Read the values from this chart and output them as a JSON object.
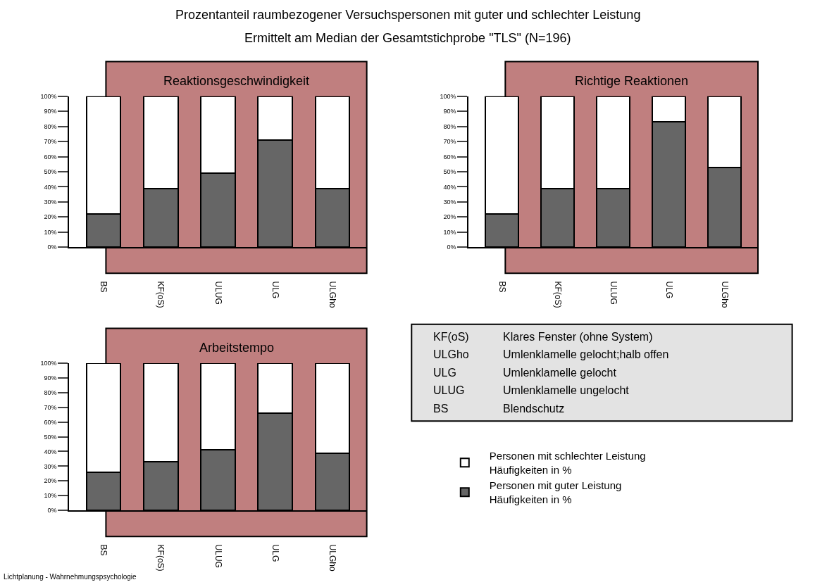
{
  "chart_data": [
    {
      "type": "bar",
      "title": "Reaktionsgeschwindigkeit",
      "categories": [
        "BS",
        "KF(oS)",
        "ULUG",
        "ULG",
        "ULGho"
      ],
      "stacked": true,
      "legend": "bottom right",
      "series": [
        {
          "name": "Personen mit guter Leistung\nHäufigkeiten in %",
          "color": "#666666",
          "values": [
            22,
            39,
            49,
            71,
            39
          ]
        },
        {
          "name": "Personen mit schlechter Leistung\nHäufigkeiten in %",
          "color": "#ffffff",
          "values": [
            78,
            61,
            51,
            29,
            61
          ]
        }
      ],
      "ylim": [
        0,
        100
      ],
      "yticks": [
        {
          "value": 0,
          "label": "0%"
        },
        {
          "value": 10,
          "label": "10%"
        },
        {
          "value": 20,
          "label": "20%"
        },
        {
          "value": 30,
          "label": "30%"
        },
        {
          "value": 40,
          "label": "40%"
        },
        {
          "value": 50,
          "label": "50%"
        },
        {
          "value": 60,
          "label": "60%"
        },
        {
          "value": 70,
          "label": "70%"
        },
        {
          "value": 80,
          "label": "80%"
        },
        {
          "value": 90,
          "label": "90%"
        },
        {
          "value": 100,
          "label": "100%"
        }
      ]
    },
    {
      "type": "bar",
      "title": "Richtige Reaktionen",
      "categories": [
        "BS",
        "KF(oS)",
        "ULUG",
        "ULG",
        "ULGho"
      ],
      "stacked": true,
      "series": [
        {
          "color": "#666666",
          "values": [
            22,
            39,
            39,
            83,
            53
          ]
        },
        {
          "color": "#ffffff",
          "values": [
            78,
            61,
            61,
            17,
            47
          ]
        }
      ],
      "ylim": [
        0,
        100
      ],
      "yticks": [
        {
          "value": 0,
          "label": "0%"
        },
        {
          "value": 10,
          "label": "10%"
        },
        {
          "value": 20,
          "label": "20%"
        },
        {
          "value": 30,
          "label": "30%"
        },
        {
          "value": 40,
          "label": "40%"
        },
        {
          "value": 50,
          "label": "50%"
        },
        {
          "value": 60,
          "label": "60%"
        },
        {
          "value": 70,
          "label": "70%"
        },
        {
          "value": 80,
          "label": "80%"
        },
        {
          "value": 90,
          "label": "90%"
        },
        {
          "value": 100,
          "label": "100%"
        }
      ]
    },
    {
      "type": "bar",
      "title": "Arbeitstempo",
      "categories": [
        "BS",
        "KF(oS)",
        "ULUG",
        "ULG",
        "ULGho"
      ],
      "stacked": true,
      "series": [
        {
          "color": "#666666",
          "values": [
            26,
            33,
            41,
            66,
            39
          ]
        },
        {
          "color": "#ffffff",
          "values": [
            74,
            67,
            59,
            34,
            61
          ]
        }
      ],
      "ylim": [
        0,
        100
      ],
      "yticks": [
        {
          "value": 0,
          "label": "0%"
        },
        {
          "value": 10,
          "label": "10%"
        },
        {
          "value": 20,
          "label": "20%"
        },
        {
          "value": 30,
          "label": "30%"
        },
        {
          "value": 40,
          "label": "40%"
        },
        {
          "value": 50,
          "label": "50%"
        },
        {
          "value": 60,
          "label": "60%"
        },
        {
          "value": 70,
          "label": "70%"
        },
        {
          "value": 80,
          "label": "80%"
        },
        {
          "value": 90,
          "label": "90%"
        },
        {
          "value": 100,
          "label": "100%"
        }
      ],
      "annotations": [
        "Lichtplanung - Wahrnehmungspsychologie"
      ]
    },
    {
      "type": "other",
      "title": "Prozentanteil raumbezogener Versuchspersonen mit guter und schlechter Leistung",
      "subtitle": "Ermittelt am Median der Gesamtstichprobe \"TLS\" (N=196)",
      "annotations": [
        "KF(oS) Klares Fenster (ohne System)",
        "ULGho Umlenklamelle gelocht;halb offen",
        "ULG Umlenklamelle gelocht",
        "ULUG Umlenklamelle ungelocht",
        "BS Blendschutz"
      ]
    }
  ]
}
